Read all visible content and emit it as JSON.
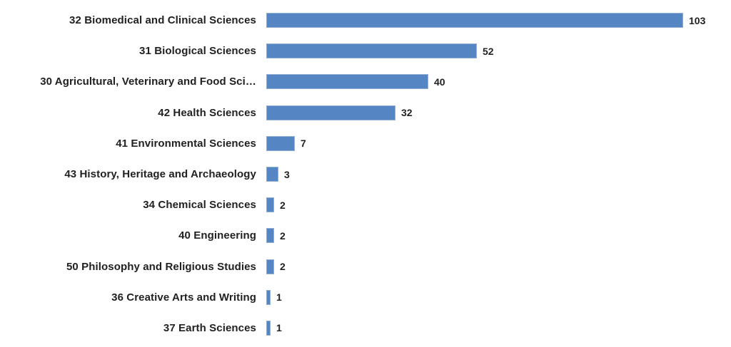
{
  "chart_data": {
    "type": "bar",
    "orientation": "horizontal",
    "title": "",
    "xlabel": "",
    "ylabel": "",
    "grid": false,
    "legend": "none",
    "axes_shown": false,
    "value_labels_shown": true,
    "bar_color": "#5585c2",
    "text_color": "#212121",
    "background_color": "#ffffff",
    "categories": [
      "32 Biomedical and Clinical Sciences",
      "31 Biological Sciences",
      "30 Agricultural, Veterinary and Food Sci…",
      "42 Health Sciences",
      "41 Environmental Sciences",
      "43 History, Heritage and Archaeology",
      "34 Chemical Sciences",
      "40 Engineering",
      "50 Philosophy and Religious Studies",
      "36 Creative Arts and Writing",
      "37 Earth Sciences"
    ],
    "values": [
      103,
      52,
      40,
      32,
      7,
      3,
      2,
      2,
      2,
      1,
      1
    ]
  }
}
